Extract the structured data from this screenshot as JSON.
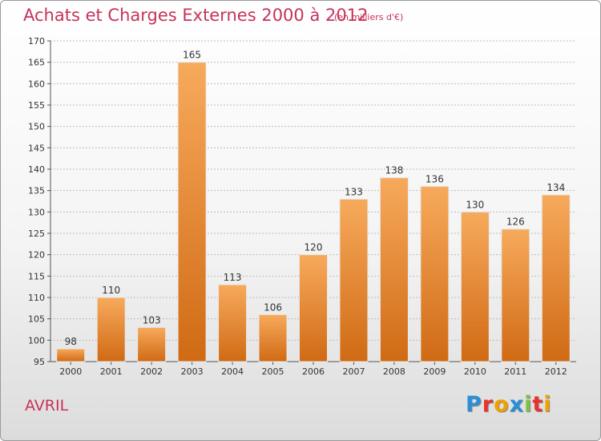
{
  "header": {
    "title": "Achats et Charges Externes 2000 à 2012",
    "subtitle": "(en milliers d'€)"
  },
  "footer": {
    "commune": "AVRIL",
    "logo_text": "Proxiti",
    "logo_colors": [
      "#2a8fd6",
      "#e8342a",
      "#f0a000",
      "#2a8fd6",
      "#7cc142",
      "#e8342a",
      "#f0a000"
    ]
  },
  "colors": {
    "bar_light": "#f7aa5c",
    "bar_dark": "#d06a14",
    "title": "#c8325a",
    "grid": "#bdbdbd"
  },
  "chart_data": {
    "type": "bar",
    "categories": [
      "2000",
      "2001",
      "2002",
      "2003",
      "2004",
      "2005",
      "2006",
      "2007",
      "2008",
      "2009",
      "2010",
      "2011",
      "2012"
    ],
    "values": [
      98,
      110,
      103,
      165,
      113,
      106,
      120,
      133,
      138,
      136,
      130,
      126,
      134
    ],
    "ylim": [
      95,
      170
    ],
    "yticks": [
      95,
      100,
      105,
      110,
      115,
      120,
      125,
      130,
      135,
      140,
      145,
      150,
      155,
      160,
      165,
      170
    ],
    "grid": true,
    "data_labels": true
  }
}
